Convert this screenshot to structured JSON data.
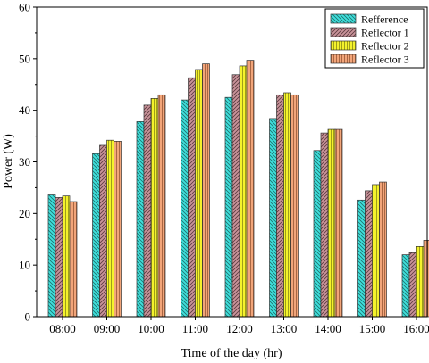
{
  "chart_data": {
    "type": "bar",
    "title": "",
    "xlabel": "Time of the day (hr)",
    "ylabel": "Power (W)",
    "ylim": [
      0,
      60
    ],
    "yticks": [
      0,
      10,
      20,
      30,
      40,
      50,
      60
    ],
    "grid": false,
    "legend_position": "top-right",
    "categories": [
      "08:00",
      "09:00",
      "10:00",
      "11:00",
      "12:00",
      "13:00",
      "14:00",
      "15:00",
      "16:00"
    ],
    "series": [
      {
        "name": "Refference",
        "color": "#3fe0dc",
        "hatch": "diag-back",
        "values": [
          23.6,
          31.6,
          37.8,
          42.0,
          42.5,
          38.4,
          32.2,
          22.6,
          12.0
        ]
      },
      {
        "name": "Reflector 1",
        "color": "#c9939a",
        "hatch": "diag-fwd",
        "values": [
          23.1,
          33.2,
          41.0,
          46.3,
          46.9,
          43.0,
          35.6,
          24.4,
          12.4
        ]
      },
      {
        "name": "Reflector 2",
        "color": "#f4f22c",
        "hatch": "vertical",
        "values": [
          23.4,
          34.2,
          42.3,
          47.9,
          48.6,
          43.4,
          36.3,
          25.6,
          13.6
        ]
      },
      {
        "name": "Reflector 3",
        "color": "#f2a57a",
        "hatch": "vertical",
        "values": [
          22.3,
          34.0,
          43.0,
          49.0,
          49.7,
          43.0,
          36.3,
          26.1,
          14.8
        ]
      }
    ]
  }
}
